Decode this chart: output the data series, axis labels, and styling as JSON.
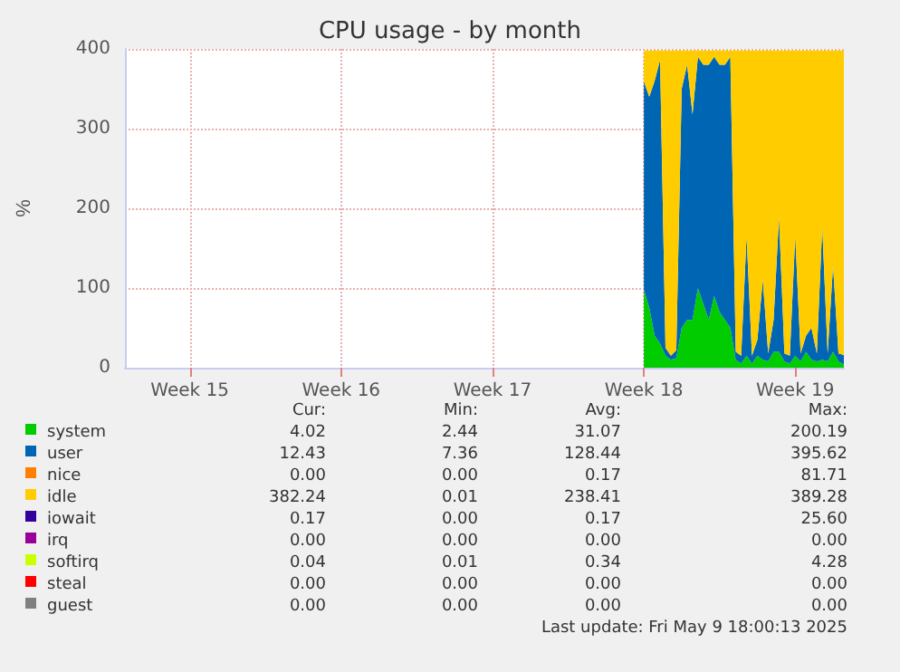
{
  "chart_data": {
    "type": "area",
    "title": "CPU usage - by month",
    "ylabel": "%",
    "stacked": true,
    "legend": "bottom",
    "grid": true,
    "categories": [
      null,
      null,
      null,
      null,
      null,
      null,
      null,
      null,
      null,
      null,
      null,
      null,
      "Week 15",
      null,
      null,
      null,
      null,
      null,
      null,
      null,
      null,
      null,
      null,
      null,
      null,
      null,
      null,
      null,
      null,
      null,
      null,
      null,
      null,
      null,
      null,
      null,
      null,
      null,
      null,
      null,
      "Week 16",
      null,
      null,
      null,
      null,
      null,
      null,
      null,
      null,
      null,
      null,
      null,
      null,
      null,
      null,
      null,
      null,
      null,
      null,
      null,
      null,
      null,
      null,
      null,
      null,
      null,
      null,
      null,
      "Week 17",
      null,
      null,
      null,
      null,
      null,
      null,
      null,
      null,
      null,
      null,
      null,
      null,
      null,
      null,
      null,
      null,
      null,
      null,
      null,
      null,
      null,
      null,
      null,
      null,
      null,
      null,
      null,
      "Week 18",
      null,
      null,
      null,
      null,
      null,
      null,
      null,
      null,
      null,
      null,
      null,
      null,
      null,
      null,
      null,
      null,
      null,
      null,
      null,
      null,
      null,
      null,
      null,
      null,
      null,
      null,
      null,
      "Week 19",
      null,
      null,
      null,
      null,
      null,
      null,
      null,
      null,
      null
    ],
    "ylim": [
      0,
      400
    ],
    "yticks": [
      0,
      100,
      200,
      300,
      400
    ],
    "series": [
      {
        "name": "system",
        "color": "#00cc00",
        "values": [
          null,
          null,
          null,
          null,
          null,
          null,
          null,
          null,
          null,
          null,
          null,
          null,
          null,
          null,
          null,
          null,
          null,
          null,
          null,
          null,
          null,
          null,
          null,
          null,
          null,
          null,
          null,
          null,
          null,
          null,
          null,
          null,
          null,
          null,
          null,
          null,
          null,
          null,
          null,
          null,
          null,
          null,
          null,
          null,
          null,
          null,
          null,
          null,
          null,
          null,
          null,
          null,
          null,
          null,
          null,
          null,
          null,
          null,
          null,
          null,
          null,
          null,
          null,
          null,
          null,
          null,
          null,
          null,
          null,
          null,
          null,
          null,
          null,
          null,
          null,
          null,
          null,
          null,
          null,
          null,
          null,
          null,
          null,
          null,
          null,
          null,
          null,
          null,
          null,
          null,
          null,
          null,
          null,
          null,
          null,
          null,
          98,
          75,
          40,
          30,
          15,
          10,
          12,
          50,
          60,
          60,
          100,
          80,
          60,
          90,
          70,
          60,
          50,
          10,
          5,
          15,
          5,
          15,
          10,
          8,
          20,
          20,
          8,
          5,
          15,
          8,
          20,
          10,
          8,
          10,
          8,
          20,
          8,
          4
        ]
      },
      {
        "name": "user",
        "color": "#0066b3",
        "values": [
          null,
          null,
          null,
          null,
          null,
          null,
          null,
          null,
          null,
          null,
          null,
          null,
          null,
          null,
          null,
          null,
          null,
          null,
          null,
          null,
          null,
          null,
          null,
          null,
          null,
          null,
          null,
          null,
          null,
          null,
          null,
          null,
          null,
          null,
          null,
          null,
          null,
          null,
          null,
          null,
          null,
          null,
          null,
          null,
          null,
          null,
          null,
          null,
          null,
          null,
          null,
          null,
          null,
          null,
          null,
          null,
          null,
          null,
          null,
          null,
          null,
          null,
          null,
          null,
          null,
          null,
          null,
          null,
          null,
          null,
          null,
          null,
          null,
          null,
          null,
          null,
          null,
          null,
          null,
          null,
          null,
          null,
          null,
          null,
          null,
          null,
          null,
          null,
          null,
          null,
          null,
          null,
          null,
          null,
          null,
          null,
          261,
          265,
          320,
          356,
          10,
          5,
          10,
          300,
          320,
          258,
          290,
          300,
          320,
          300,
          310,
          320,
          340,
          10,
          10,
          150,
          10,
          20,
          100,
          10,
          40,
          169,
          10,
          10,
          150,
          10,
          20,
          40,
          10,
          167,
          10,
          108,
          10,
          12
        ]
      },
      {
        "name": "nice",
        "color": "#ff8000",
        "values": [
          null,
          null,
          null,
          null,
          null,
          null,
          null,
          null,
          null,
          null,
          null,
          null,
          null,
          null,
          null,
          null,
          null,
          null,
          null,
          null,
          null,
          null,
          null,
          null,
          null,
          null,
          null,
          null,
          null,
          null,
          null,
          null,
          null,
          null,
          null,
          null,
          null,
          null,
          null,
          null,
          null,
          null,
          null,
          null,
          null,
          null,
          null,
          null,
          null,
          null,
          null,
          null,
          null,
          null,
          null,
          null,
          null,
          null,
          null,
          null,
          null,
          null,
          null,
          null,
          null,
          null,
          null,
          null,
          null,
          null,
          null,
          null,
          null,
          null,
          null,
          null,
          null,
          null,
          null,
          null,
          null,
          null,
          null,
          null,
          null,
          null,
          null,
          null,
          null,
          null,
          null,
          null,
          null,
          null,
          null,
          null,
          null,
          null,
          null,
          null,
          null,
          null,
          null,
          null,
          null,
          null,
          null,
          null,
          null,
          null,
          null,
          null,
          null,
          null,
          null,
          null,
          null,
          null,
          null,
          null,
          null,
          null,
          null,
          null,
          null,
          null,
          null,
          null,
          null,
          null,
          null,
          null,
          null,
          null
        ]
      },
      {
        "name": "idle",
        "color": "#ffcc00",
        "values": [
          null,
          null,
          null,
          null,
          null,
          null,
          null,
          null,
          null,
          null,
          null,
          null,
          null,
          null,
          null,
          null,
          null,
          null,
          null,
          null,
          null,
          null,
          null,
          null,
          null,
          null,
          null,
          null,
          null,
          null,
          null,
          null,
          null,
          null,
          null,
          null,
          null,
          null,
          null,
          null,
          null,
          null,
          null,
          null,
          null,
          null,
          null,
          null,
          null,
          null,
          null,
          null,
          null,
          null,
          null,
          null,
          null,
          null,
          null,
          null,
          null,
          null,
          null,
          null,
          null,
          null,
          null,
          null,
          null,
          null,
          null,
          null,
          null,
          null,
          null,
          null,
          null,
          null,
          null,
          null,
          null,
          null,
          null,
          null,
          null,
          null,
          null,
          null,
          null,
          null,
          null,
          null,
          null,
          null,
          null,
          null,
          39,
          58,
          38,
          12,
          373,
          383,
          376,
          48,
          18,
          80,
          8,
          18,
          18,
          8,
          18,
          18,
          8,
          378,
          383,
          233,
          383,
          363,
          288,
          380,
          338,
          209,
          380,
          383,
          233,
          380,
          358,
          348,
          380,
          221,
          380,
          270,
          380,
          382
        ]
      },
      {
        "name": "iowait",
        "color": "#330099",
        "values": [
          null,
          null,
          null,
          null,
          null,
          null,
          null,
          null,
          null,
          null,
          null,
          null,
          null,
          null,
          null,
          null,
          null,
          null,
          null,
          null,
          null,
          null,
          null,
          null,
          null,
          null,
          null,
          null,
          null,
          null,
          null,
          null,
          null,
          null,
          null,
          null,
          null,
          null,
          null,
          null,
          null,
          null,
          null,
          null,
          null,
          null,
          null,
          null,
          null,
          null,
          null,
          null,
          null,
          null,
          null,
          null,
          null,
          null,
          null,
          null,
          null,
          null,
          null,
          null,
          null,
          null,
          null,
          null,
          null,
          null,
          null,
          null,
          null,
          null,
          null,
          null,
          null,
          null,
          null,
          null,
          null,
          null,
          null,
          null,
          null,
          null,
          null,
          null,
          null,
          null,
          null,
          null,
          null,
          null,
          null,
          null,
          null,
          null,
          null,
          null,
          null,
          null,
          null,
          null,
          null,
          null,
          null,
          null,
          null,
          null,
          null,
          null,
          null,
          null,
          null,
          null,
          null,
          null,
          null,
          null,
          null,
          null,
          null,
          null,
          null,
          null,
          null,
          null,
          null,
          null,
          null,
          null,
          null,
          null
        ]
      },
      {
        "name": "irq",
        "color": "#990099",
        "values": [
          null,
          null,
          null,
          null,
          null,
          null,
          null,
          null,
          null,
          null,
          null,
          null,
          null,
          null,
          null,
          null,
          null,
          null,
          null,
          null,
          null,
          null,
          null,
          null,
          null,
          null,
          null,
          null,
          null,
          null,
          null,
          null,
          null,
          null,
          null,
          null,
          null,
          null,
          null,
          null,
          null,
          null,
          null,
          null,
          null,
          null,
          null,
          null,
          null,
          null,
          null,
          null,
          null,
          null,
          null,
          null,
          null,
          null,
          null,
          null,
          null,
          null,
          null,
          null,
          null,
          null,
          null,
          null,
          null,
          null,
          null,
          null,
          null,
          null,
          null,
          null,
          null,
          null,
          null,
          null,
          null,
          null,
          null,
          null,
          null,
          null,
          null,
          null,
          null,
          null,
          null,
          null,
          null,
          null,
          null,
          null,
          null,
          null,
          null,
          null,
          null,
          null,
          null,
          null,
          null,
          null,
          null,
          null,
          null,
          null,
          null,
          null,
          null,
          null,
          null,
          null,
          null,
          null,
          null,
          null,
          null,
          null,
          null,
          null,
          null,
          null,
          null,
          null,
          null,
          null,
          null,
          null,
          null,
          null
        ]
      },
      {
        "name": "softirq",
        "color": "#ccff00",
        "values": [
          null,
          null,
          null,
          null,
          null,
          null,
          null,
          null,
          null,
          null,
          null,
          null,
          null,
          null,
          null,
          null,
          null,
          null,
          null,
          null,
          null,
          null,
          null,
          null,
          null,
          null,
          null,
          null,
          null,
          null,
          null,
          null,
          null,
          null,
          null,
          null,
          null,
          null,
          null,
          null,
          null,
          null,
          null,
          null,
          null,
          null,
          null,
          null,
          null,
          null,
          null,
          null,
          null,
          null,
          null,
          null,
          null,
          null,
          null,
          null,
          null,
          null,
          null,
          null,
          null,
          null,
          null,
          null,
          null,
          null,
          null,
          null,
          null,
          null,
          null,
          null,
          null,
          null,
          null,
          null,
          null,
          null,
          null,
          null,
          null,
          null,
          null,
          null,
          null,
          null,
          null,
          null,
          null,
          null,
          null,
          null,
          null,
          null,
          null,
          null,
          null,
          null,
          null,
          null,
          null,
          null,
          null,
          null,
          null,
          null,
          null,
          null,
          null,
          null,
          null,
          null,
          null,
          null,
          null,
          null,
          null,
          null,
          null,
          null,
          null,
          null,
          null,
          null,
          null,
          null,
          null,
          null,
          null,
          null
        ]
      },
      {
        "name": "steal",
        "color": "#ff0000",
        "values": [
          null,
          null,
          null,
          null,
          null,
          null,
          null,
          null,
          null,
          null,
          null,
          null,
          null,
          null,
          null,
          null,
          null,
          null,
          null,
          null,
          null,
          null,
          null,
          null,
          null,
          null,
          null,
          null,
          null,
          null,
          null,
          null,
          null,
          null,
          null,
          null,
          null,
          null,
          null,
          null,
          null,
          null,
          null,
          null,
          null,
          null,
          null,
          null,
          null,
          null,
          null,
          null,
          null,
          null,
          null,
          null,
          null,
          null,
          null,
          null,
          null,
          null,
          null,
          null,
          null,
          null,
          null,
          null,
          null,
          null,
          null,
          null,
          null,
          null,
          null,
          null,
          null,
          null,
          null,
          null,
          null,
          null,
          null,
          null,
          null,
          null,
          null,
          null,
          null,
          null,
          null,
          null,
          null,
          null,
          null,
          null,
          null,
          null,
          null,
          null,
          null,
          null,
          null,
          null,
          null,
          null,
          null,
          null,
          null,
          null,
          null,
          null,
          null,
          null,
          null,
          null,
          null,
          null,
          null,
          null,
          null,
          null,
          null,
          null,
          null,
          null,
          null,
          null,
          null,
          null,
          null,
          null,
          null,
          null
        ]
      },
      {
        "name": "guest",
        "color": "#808080",
        "values": [
          null,
          null,
          null,
          null,
          null,
          null,
          null,
          null,
          null,
          null,
          null,
          null,
          null,
          null,
          null,
          null,
          null,
          null,
          null,
          null,
          null,
          null,
          null,
          null,
          null,
          null,
          null,
          null,
          null,
          null,
          null,
          null,
          null,
          null,
          null,
          null,
          null,
          null,
          null,
          null,
          null,
          null,
          null,
          null,
          null,
          null,
          null,
          null,
          null,
          null,
          null,
          null,
          null,
          null,
          null,
          null,
          null,
          null,
          null,
          null,
          null,
          null,
          null,
          null,
          null,
          null,
          null,
          null,
          null,
          null,
          null,
          null,
          null,
          null,
          null,
          null,
          null,
          null,
          null,
          null,
          null,
          null,
          null,
          null,
          null,
          null,
          null,
          null,
          null,
          null,
          null,
          null,
          null,
          null,
          null,
          null,
          null,
          null,
          null,
          null,
          null,
          null,
          null,
          null,
          null,
          null,
          null,
          null,
          null,
          null,
          null,
          null,
          null,
          null,
          null,
          null,
          null,
          null,
          null,
          null,
          null,
          null,
          null,
          null,
          null,
          null,
          null,
          null,
          null,
          null,
          null,
          null,
          null,
          null
        ]
      }
    ],
    "annotations": [
      "Cur:",
      "Min:",
      "Avg:",
      "Max:",
      "4.02",
      "2.44",
      "31.07",
      "200.19",
      "12.43",
      "7.36",
      "128.44",
      "395.62",
      "0.00",
      "0.00",
      "0.17",
      "81.71",
      "382.24",
      "0.01",
      "238.41",
      "389.28",
      "0.17",
      "0.00",
      "0.17",
      "25.60",
      "0.00",
      "0.00",
      "0.00",
      "0.00",
      "0.04",
      "0.01",
      "0.34",
      "4.28",
      "0.00",
      "0.00",
      "0.00",
      "0.00",
      "0.00",
      "0.00",
      "0.00",
      "0.00",
      "Last update: Fri May  9 18:00:13 2025"
    ]
  }
}
